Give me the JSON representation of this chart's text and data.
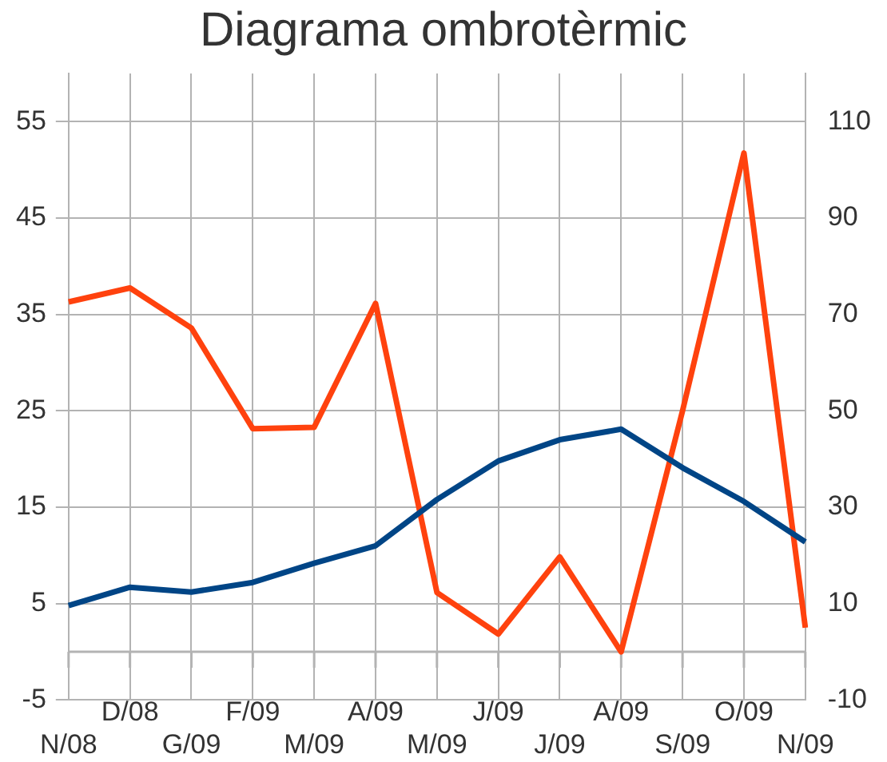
{
  "chart_data": {
    "type": "line",
    "title": "Diagrama ombrotèrmic",
    "categories": [
      "N/08",
      "D/08",
      "G/09",
      "F/09",
      "M/09",
      "A/09",
      "M/09",
      "J/09",
      "J/09",
      "A/09",
      "S/09",
      "O/09",
      "N/09"
    ],
    "series": [
      {
        "color": "#004586",
        "values": [
          4.8,
          6.7,
          6.2,
          7.2,
          9.2,
          11.0,
          15.8,
          19.8,
          22.0,
          23.1,
          19.1,
          15.6,
          11.4
        ]
      },
      {
        "color": "#ff420e",
        "axis": "y2",
        "values": [
          72.6,
          75.5,
          67.2,
          46.3,
          46.6,
          72.3,
          12.3,
          3.7,
          19.7,
          0,
          50,
          103.5,
          5.0
        ]
      }
    ],
    "ylim": [
      -5,
      60
    ],
    "yticks": [
      -5,
      5,
      15,
      25,
      35,
      45,
      55
    ],
    "y2lim": [
      -10,
      120
    ],
    "y2ticks": [
      -10,
      10,
      30,
      50,
      70,
      90,
      110
    ],
    "ref_lines": [
      {
        "axis": "y",
        "value": 0,
        "color": "#b3b3b3"
      }
    ],
    "grid": true,
    "legend": false,
    "marker": "none",
    "line_style": "solid"
  }
}
